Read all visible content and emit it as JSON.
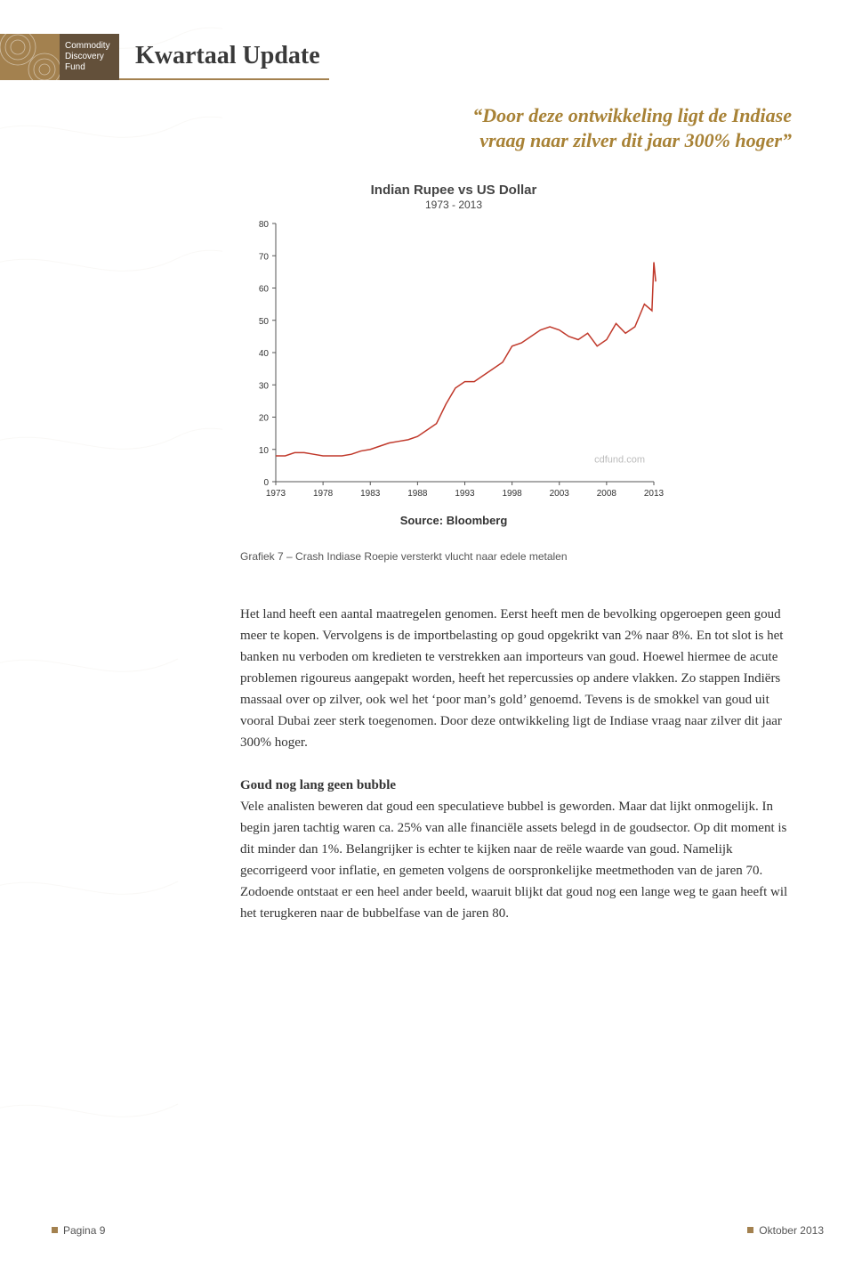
{
  "brand": {
    "line1": "Commodity",
    "line2": "Discovery",
    "line3": "Fund",
    "accent_color": "#a3814f",
    "dark_color": "#63503a"
  },
  "page_title": "Kwartaal Update",
  "pull_quote": "“Door deze ontwikkeling ligt de Indiase vraag naar zilver dit jaar 300% hoger”",
  "chart": {
    "type": "line",
    "title": "Indian Rupee vs US Dollar",
    "subtitle": "1973 - 2013",
    "watermark": "cdfund.com",
    "source_label": "Source: Bloomberg",
    "caption": "Grafiek 7 – Crash Indiase Roepie versterkt vlucht naar edele metalen",
    "line_color": "#c0392b",
    "line_width": 1.5,
    "axis_color": "#555555",
    "tick_color": "#555555",
    "label_color": "#333333",
    "background_color": "#ffffff",
    "ylim": [
      0,
      80
    ],
    "ytick_step": 10,
    "yticks": [
      0,
      10,
      20,
      30,
      40,
      50,
      60,
      70,
      80
    ],
    "xlim": [
      1973,
      2013
    ],
    "xticks": [
      1973,
      1978,
      1983,
      1988,
      1993,
      1998,
      2003,
      2008,
      2013
    ],
    "label_fontsize": 10,
    "series": [
      {
        "x": 1973,
        "y": 8
      },
      {
        "x": 1974,
        "y": 8
      },
      {
        "x": 1975,
        "y": 9
      },
      {
        "x": 1976,
        "y": 9
      },
      {
        "x": 1977,
        "y": 8.5
      },
      {
        "x": 1978,
        "y": 8
      },
      {
        "x": 1979,
        "y": 8
      },
      {
        "x": 1980,
        "y": 8
      },
      {
        "x": 1981,
        "y": 8.5
      },
      {
        "x": 1982,
        "y": 9.5
      },
      {
        "x": 1983,
        "y": 10
      },
      {
        "x": 1984,
        "y": 11
      },
      {
        "x": 1985,
        "y": 12
      },
      {
        "x": 1986,
        "y": 12.5
      },
      {
        "x": 1987,
        "y": 13
      },
      {
        "x": 1988,
        "y": 14
      },
      {
        "x": 1989,
        "y": 16
      },
      {
        "x": 1990,
        "y": 18
      },
      {
        "x": 1991,
        "y": 24
      },
      {
        "x": 1992,
        "y": 29
      },
      {
        "x": 1993,
        "y": 31
      },
      {
        "x": 1994,
        "y": 31
      },
      {
        "x": 1995,
        "y": 33
      },
      {
        "x": 1996,
        "y": 35
      },
      {
        "x": 1997,
        "y": 37
      },
      {
        "x": 1998,
        "y": 42
      },
      {
        "x": 1999,
        "y": 43
      },
      {
        "x": 2000,
        "y": 45
      },
      {
        "x": 2001,
        "y": 47
      },
      {
        "x": 2002,
        "y": 48
      },
      {
        "x": 2003,
        "y": 47
      },
      {
        "x": 2004,
        "y": 45
      },
      {
        "x": 2005,
        "y": 44
      },
      {
        "x": 2006,
        "y": 46
      },
      {
        "x": 2007,
        "y": 42
      },
      {
        "x": 2008,
        "y": 44
      },
      {
        "x": 2009,
        "y": 49
      },
      {
        "x": 2010,
        "y": 46
      },
      {
        "x": 2011,
        "y": 48
      },
      {
        "x": 2012,
        "y": 55
      },
      {
        "x": 2012.8,
        "y": 53
      },
      {
        "x": 2013,
        "y": 68
      },
      {
        "x": 2013.2,
        "y": 62
      }
    ]
  },
  "body": {
    "para1": "Het land heeft een aantal maatregelen genomen. Eerst heeft men de bevolking opgeroepen geen goud meer te kopen. Vervolgens is de importbelasting op goud opgekrikt van 2% naar 8%. En tot slot is het banken nu verboden om kredieten te verstrekken aan importeurs van goud. Hoewel hiermee de acute problemen rigoureus aangepakt worden, heeft het repercussies op andere vlakken. Zo stappen Indiërs massaal over op zilver, ook wel het ‘poor man’s gold’ genoemd. Tevens is de smokkel van goud uit vooral Dubai zeer sterk toegenomen. Door deze ontwikkeling ligt de Indiase vraag naar zilver dit jaar 300% hoger.",
    "section_head": "Goud nog lang geen bubble",
    "para2": "Vele analisten beweren dat goud een speculatieve bubbel is geworden. Maar dat lijkt onmogelijk. In begin jaren tachtig waren ca. 25% van alle financiële assets belegd in de goudsector. Op dit moment is dit minder dan 1%. Belangrijker is echter te kijken naar de reële waarde van goud. Namelijk gecorrigeerd voor inflatie, en gemeten volgens de oorspronkelijke meetmethoden van de jaren 70. Zodoende ontstaat er een heel ander beeld, waaruit blijkt dat goud nog een lange weg te gaan heeft wil het terugkeren naar de bubbelfase van de jaren 80."
  },
  "footer": {
    "page_label": "Pagina 9",
    "date_label": "Oktober 2013"
  }
}
